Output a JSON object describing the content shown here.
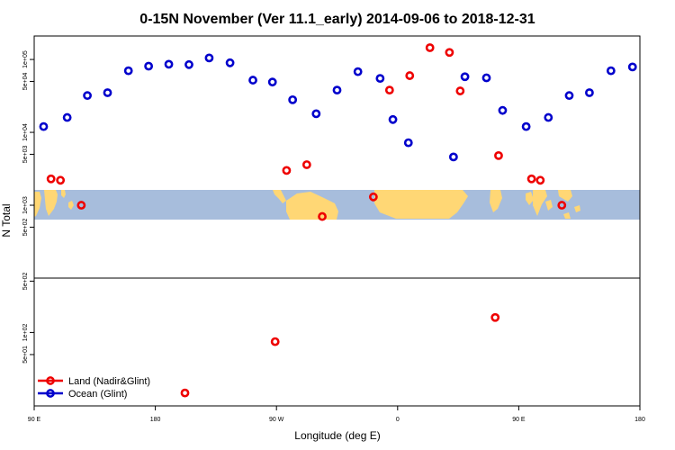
{
  "chart_data": {
    "type": "scatter",
    "title": "0-15N November (Ver 11.1_early)   2014-09-06 to 2018-12-31",
    "xlabel": "Longitude (deg E)",
    "ylabel": "N Total",
    "x_ticks": [
      {
        "value": 90,
        "label": "90 E"
      },
      {
        "value": 180,
        "label": "180"
      },
      {
        "value": 270,
        "label": "90 W"
      },
      {
        "value": 360,
        "label": "0"
      },
      {
        "value": 450,
        "label": "90 E"
      },
      {
        "value": 540,
        "label": "180"
      }
    ],
    "xlim": [
      90,
      540
    ],
    "upper_panel": {
      "y_scale": "log",
      "ylim": [
        100,
        210000
      ],
      "y_ticks": [
        {
          "value": 500,
          "label": "5e+02"
        },
        {
          "value": 1000,
          "label": "1e+03"
        },
        {
          "value": 5000,
          "label": "5e+03"
        },
        {
          "value": 10000,
          "label": "1e+04"
        },
        {
          "value": 50000,
          "label": "5e+04"
        },
        {
          "value": 100000,
          "label": "1e+05"
        }
      ]
    },
    "lower_panel": {
      "y_scale": "log",
      "ylim": [
        10,
        550
      ],
      "y_ticks": [
        {
          "value": 50,
          "label": "5e+01"
        },
        {
          "value": 100,
          "label": "1e+02"
        },
        {
          "value": 500,
          "label": "5e+02"
        }
      ]
    },
    "background_map": {
      "lat_range": "0-15N",
      "ocean_color": "#A7BDDC",
      "land_color": "#FFD775"
    },
    "legend": {
      "position": "bottom-left"
    },
    "series": [
      {
        "name": "Land (Nadir&Glint)",
        "color": "#EE0000",
        "panel": "upper",
        "points": [
          {
            "x": 102.5,
            "y": 2300
          },
          {
            "x": 109.5,
            "y": 2200
          },
          {
            "x": 125,
            "y": 1000
          },
          {
            "x": 277.5,
            "y": 3000
          },
          {
            "x": 292.5,
            "y": 3600
          },
          {
            "x": 304,
            "y": 700
          },
          {
            "x": 342,
            "y": 1300
          },
          {
            "x": 354,
            "y": 38000
          },
          {
            "x": 369,
            "y": 60000
          },
          {
            "x": 384,
            "y": 145000
          },
          {
            "x": 398.5,
            "y": 125000
          },
          {
            "x": 406.5,
            "y": 37000
          },
          {
            "x": 435,
            "y": 4800
          },
          {
            "x": 459.5,
            "y": 2300
          },
          {
            "x": 466,
            "y": 2200
          },
          {
            "x": 482,
            "y": 1000
          }
        ]
      },
      {
        "name": "Land (Nadir&Glint)",
        "color": "#EE0000",
        "panel": "lower",
        "points": [
          {
            "x": 269,
            "y": 75
          },
          {
            "x": 202,
            "y": 15
          },
          {
            "x": 432.5,
            "y": 160
          }
        ]
      },
      {
        "name": "Ocean (Glint)",
        "color": "#0000CC",
        "panel": "upper",
        "points": [
          {
            "x": 97,
            "y": 12000
          },
          {
            "x": 114.5,
            "y": 16000
          },
          {
            "x": 129.5,
            "y": 32000
          },
          {
            "x": 144.5,
            "y": 35000
          },
          {
            "x": 160,
            "y": 70000
          },
          {
            "x": 175,
            "y": 81000
          },
          {
            "x": 190,
            "y": 86000
          },
          {
            "x": 205,
            "y": 85000
          },
          {
            "x": 220,
            "y": 105000
          },
          {
            "x": 235.5,
            "y": 90000
          },
          {
            "x": 252.5,
            "y": 52000
          },
          {
            "x": 267,
            "y": 49000
          },
          {
            "x": 282,
            "y": 28000
          },
          {
            "x": 299.5,
            "y": 18000
          },
          {
            "x": 315,
            "y": 38000
          },
          {
            "x": 330.5,
            "y": 68000
          },
          {
            "x": 347,
            "y": 55000
          },
          {
            "x": 356.5,
            "y": 15000
          },
          {
            "x": 368,
            "y": 7200
          },
          {
            "x": 401.5,
            "y": 4600
          },
          {
            "x": 410,
            "y": 58000
          },
          {
            "x": 426,
            "y": 56000
          },
          {
            "x": 438,
            "y": 20000
          },
          {
            "x": 455.5,
            "y": 12000
          },
          {
            "x": 472,
            "y": 16000
          },
          {
            "x": 487.5,
            "y": 32000
          },
          {
            "x": 502.5,
            "y": 35000
          },
          {
            "x": 518.5,
            "y": 70000
          },
          {
            "x": 534.5,
            "y": 79000
          }
        ]
      }
    ]
  }
}
